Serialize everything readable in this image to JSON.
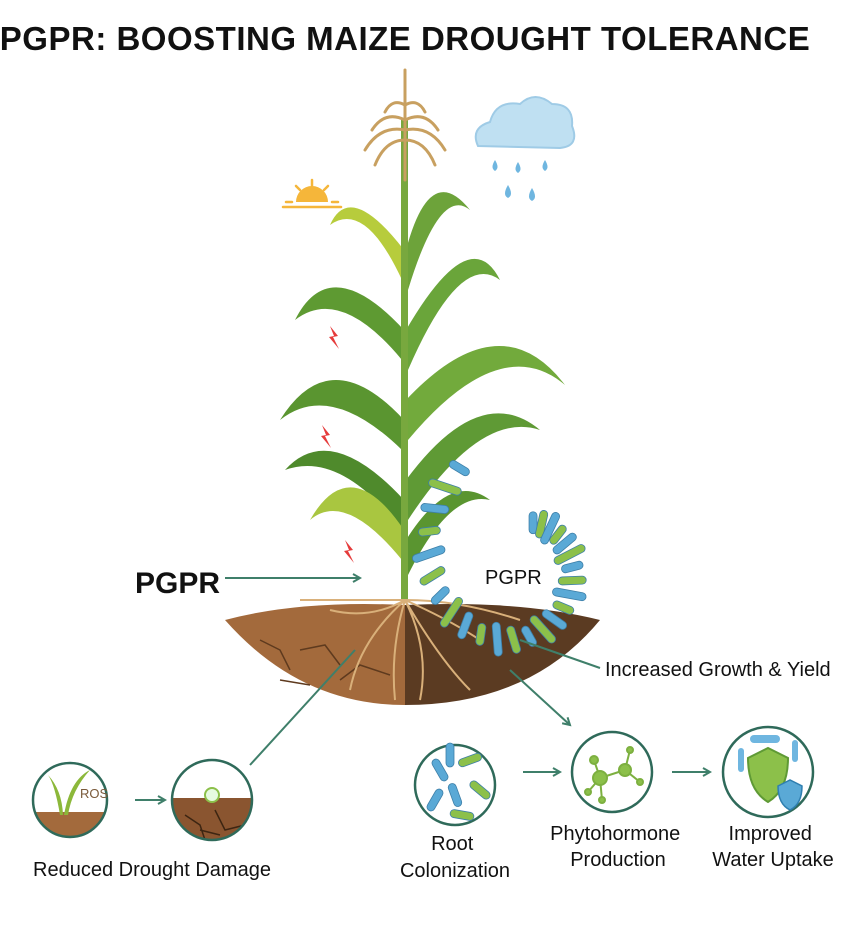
{
  "title": "PGPR: BOOSTING MAIZE DROUGHT TOLERANCE",
  "labels": {
    "pgpr_left": "PGPR",
    "pgpr_right": "PGPR",
    "increased_growth": "Increased Growth & Yield",
    "ros": "ROS",
    "reduced_drought_damage": "Reduced Drought Damage",
    "root_colonization": [
      "Root",
      "Colonization"
    ],
    "phytohormone_production": [
      "Phytohormone",
      "Production"
    ],
    "improved_water_uptake": [
      "Improved",
      "Water Uptake"
    ]
  },
  "colors": {
    "arrow": "#3f7f6a",
    "leaf": "#5f9a35",
    "leaf_light": "#a9c640",
    "soil_dry": "#a36a3c",
    "soil_moist": "#5b3b22",
    "bacteria_blue": "#5aa9d6",
    "bacteria_green": "#8cc04a",
    "circle_border": "#2f6a5a"
  },
  "icons": [
    "sun-icon",
    "rain-cloud-icon",
    "stress-lightning-icon",
    "bacteria-icon",
    "molecule-icon",
    "shield-icon"
  ]
}
